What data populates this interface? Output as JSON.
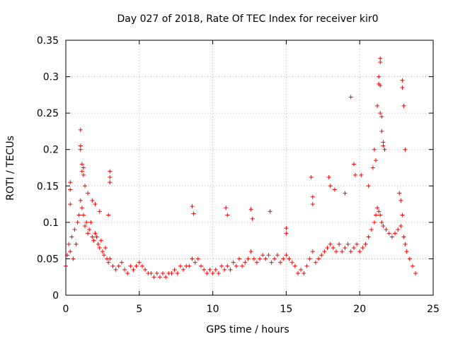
{
  "chart_data": {
    "type": "scatter",
    "title": "Day 027 of 2018, Rate Of TEC Index for receiver kir0",
    "xlabel": "GPS time / hours",
    "ylabel": "ROTI / TECUs",
    "xlim": [
      0,
      25
    ],
    "ylim": [
      0,
      0.35
    ],
    "xticks": [
      0,
      5,
      10,
      15,
      20,
      25
    ],
    "xtick_labels": [
      "0",
      "5",
      "10",
      "15",
      "20",
      "25"
    ],
    "yticks": [
      0,
      0.05,
      0.1,
      0.15,
      0.2,
      0.25,
      0.3,
      0.35
    ],
    "ytick_labels": [
      "0",
      "0.05",
      "0.1",
      "0.15",
      "0.2",
      "0.25",
      "0.3",
      "0.35"
    ],
    "grid": true,
    "marker": "+",
    "series": [
      {
        "name": "ROTI",
        "color": "#ff0000",
        "x": [
          0.0,
          0.1,
          0.2,
          0.3,
          0.4,
          0.5,
          0.6,
          0.7,
          0.8,
          0.9,
          1.0,
          1.1,
          1.2,
          1.3,
          1.4,
          1.5,
          1.6,
          1.7,
          1.8,
          1.9,
          2.0,
          2.1,
          2.2,
          2.3,
          2.4,
          2.5,
          2.6,
          2.7,
          2.8,
          2.9,
          3.0,
          3.2,
          3.4,
          3.6,
          3.8,
          4.0,
          4.2,
          4.4,
          4.6,
          4.8,
          5.0,
          5.2,
          5.4,
          5.6,
          5.8,
          6.0,
          6.2,
          6.4,
          6.6,
          6.8,
          7.0,
          7.2,
          7.4,
          7.6,
          7.8,
          8.0,
          8.2,
          8.4,
          8.6,
          8.8,
          9.0,
          9.2,
          9.4,
          9.6,
          9.8,
          10.0,
          10.2,
          10.4,
          10.6,
          10.8,
          11.0,
          11.2,
          11.4,
          11.6,
          11.8,
          12.0,
          12.2,
          12.4,
          12.6,
          12.8,
          13.0,
          13.2,
          13.4,
          13.6,
          13.8,
          14.0,
          14.2,
          14.4,
          14.6,
          14.8,
          15.0,
          15.2,
          15.4,
          15.6,
          15.8,
          16.0,
          16.2,
          16.4,
          16.6,
          16.8,
          17.0,
          17.2,
          17.4,
          17.6,
          17.8,
          18.0,
          18.2,
          18.4,
          18.6,
          18.8,
          19.0,
          19.2,
          19.4,
          19.6,
          19.8,
          20.0,
          20.2,
          20.4,
          20.6,
          20.8,
          21.0,
          21.1,
          21.2,
          21.3,
          21.4,
          21.5,
          21.6,
          21.8,
          22.0,
          22.2,
          22.4,
          22.6,
          22.8,
          22.9,
          23.0,
          23.1,
          23.2,
          23.4,
          23.6,
          23.8,
          0.3,
          0.3,
          0.3,
          1.0,
          1.0,
          1.0,
          1.1,
          1.1,
          1.2,
          1.2,
          1.3,
          1.5,
          1.8,
          2.0,
          2.3,
          2.9,
          3.0,
          3.0,
          3.0,
          8.6,
          8.7,
          10.9,
          11.0,
          12.6,
          12.7,
          13.9,
          15.0,
          15.0,
          16.7,
          16.8,
          16.8,
          17.9,
          18.0,
          18.3,
          19.0,
          19.4,
          19.6,
          19.7,
          20.1,
          20.6,
          20.9,
          21.0,
          21.1,
          21.2,
          21.3,
          21.3,
          21.4,
          21.4,
          21.4,
          21.4,
          21.5,
          21.5,
          21.6,
          21.6,
          21.7,
          22.7,
          22.8,
          22.9,
          22.9,
          23.0,
          23.1
        ],
        "y": [
          0.04,
          0.055,
          0.07,
          0.06,
          0.08,
          0.05,
          0.09,
          0.07,
          0.1,
          0.11,
          0.13,
          0.12,
          0.11,
          0.095,
          0.1,
          0.085,
          0.09,
          0.1,
          0.08,
          0.075,
          0.085,
          0.08,
          0.07,
          0.065,
          0.075,
          0.06,
          0.055,
          0.065,
          0.05,
          0.045,
          0.05,
          0.04,
          0.035,
          0.04,
          0.045,
          0.035,
          0.03,
          0.04,
          0.035,
          0.04,
          0.045,
          0.04,
          0.035,
          0.03,
          0.03,
          0.025,
          0.03,
          0.025,
          0.03,
          0.025,
          0.03,
          0.03,
          0.035,
          0.03,
          0.04,
          0.035,
          0.04,
          0.04,
          0.05,
          0.045,
          0.05,
          0.04,
          0.035,
          0.03,
          0.035,
          0.03,
          0.035,
          0.03,
          0.04,
          0.035,
          0.04,
          0.035,
          0.045,
          0.04,
          0.05,
          0.04,
          0.045,
          0.05,
          0.06,
          0.05,
          0.045,
          0.05,
          0.055,
          0.05,
          0.055,
          0.045,
          0.05,
          0.055,
          0.045,
          0.05,
          0.055,
          0.05,
          0.045,
          0.04,
          0.03,
          0.035,
          0.03,
          0.04,
          0.05,
          0.06,
          0.045,
          0.05,
          0.055,
          0.06,
          0.065,
          0.07,
          0.065,
          0.06,
          0.07,
          0.06,
          0.065,
          0.07,
          0.06,
          0.065,
          0.07,
          0.06,
          0.065,
          0.07,
          0.08,
          0.09,
          0.1,
          0.11,
          0.12,
          0.115,
          0.11,
          0.1,
          0.095,
          0.09,
          0.085,
          0.08,
          0.085,
          0.09,
          0.095,
          0.11,
          0.08,
          0.07,
          0.06,
          0.05,
          0.04,
          0.03,
          0.155,
          0.145,
          0.125,
          0.227,
          0.205,
          0.2,
          0.18,
          0.17,
          0.175,
          0.165,
          0.15,
          0.14,
          0.13,
          0.125,
          0.115,
          0.11,
          0.17,
          0.162,
          0.155,
          0.122,
          0.112,
          0.12,
          0.11,
          0.118,
          0.105,
          0.115,
          0.092,
          0.085,
          0.162,
          0.135,
          0.125,
          0.162,
          0.15,
          0.145,
          0.14,
          0.272,
          0.18,
          0.165,
          0.165,
          0.15,
          0.175,
          0.2,
          0.185,
          0.26,
          0.3,
          0.29,
          0.325,
          0.32,
          0.288,
          0.25,
          0.245,
          0.225,
          0.21,
          0.205,
          0.2,
          0.14,
          0.13,
          0.295,
          0.285,
          0.26,
          0.2
        ]
      }
    ]
  }
}
